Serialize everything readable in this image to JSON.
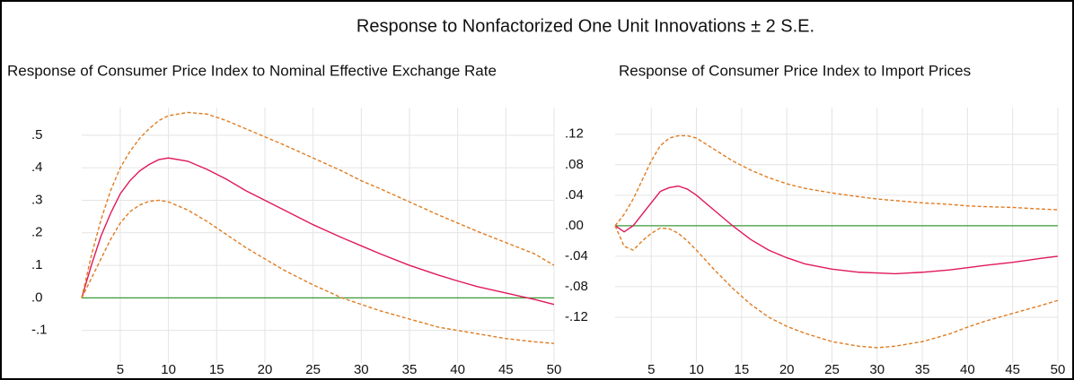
{
  "title": "Response to Nonfactorized One Unit Innovations ± 2 S.E.",
  "chart_data": [
    {
      "type": "line",
      "title": "Response of Consumer Price Index to Nominal Effective Exchange Rate",
      "x": [
        1,
        2,
        3,
        4,
        5,
        6,
        7,
        8,
        9,
        10,
        12,
        14,
        16,
        18,
        20,
        22,
        25,
        28,
        30,
        32,
        35,
        38,
        40,
        42,
        45,
        48,
        50
      ],
      "xlim": [
        1,
        50
      ],
      "xticks": [
        5,
        10,
        15,
        20,
        25,
        30,
        35,
        40,
        45,
        50
      ],
      "ylim": [
        -0.2,
        0.585
      ],
      "yticks": [
        {
          "value": -0.1,
          "label": "-.1"
        },
        {
          "value": 0,
          "label": ".0"
        },
        {
          "value": 0.1,
          "label": ".1"
        },
        {
          "value": 0.2,
          "label": ".2"
        },
        {
          "value": 0.3,
          "label": ".3"
        },
        {
          "value": 0.4,
          "label": ".4"
        },
        {
          "value": 0.5,
          "label": ".5"
        }
      ],
      "grid": true,
      "zero_line": {
        "value": 0,
        "color": "#3a9a3a"
      },
      "series": [
        {
          "color": "#e0185c",
          "dashed": false,
          "values": [
            0,
            0.1,
            0.19,
            0.26,
            0.32,
            0.36,
            0.39,
            0.41,
            0.425,
            0.43,
            0.42,
            0.395,
            0.365,
            0.33,
            0.3,
            0.27,
            0.225,
            0.185,
            0.16,
            0.135,
            0.1,
            0.07,
            0.052,
            0.035,
            0.015,
            -0.005,
            -0.02
          ]
        },
        {
          "color": "#e07b20",
          "dashed": true,
          "values": [
            0,
            0.13,
            0.24,
            0.33,
            0.4,
            0.45,
            0.49,
            0.52,
            0.545,
            0.56,
            0.57,
            0.565,
            0.545,
            0.52,
            0.495,
            0.47,
            0.43,
            0.39,
            0.36,
            0.335,
            0.295,
            0.255,
            0.23,
            0.205,
            0.17,
            0.135,
            0.1
          ]
        },
        {
          "color": "#e07b20",
          "dashed": true,
          "values": [
            0,
            0.06,
            0.12,
            0.18,
            0.23,
            0.265,
            0.285,
            0.297,
            0.3,
            0.295,
            0.27,
            0.235,
            0.195,
            0.155,
            0.12,
            0.085,
            0.04,
            0.0,
            -0.02,
            -0.04,
            -0.065,
            -0.09,
            -0.1,
            -0.11,
            -0.125,
            -0.135,
            -0.14
          ]
        }
      ]
    },
    {
      "type": "line",
      "title": "Response of Consumer Price Index to Import Prices",
      "x": [
        1,
        2,
        3,
        4,
        5,
        6,
        7,
        8,
        9,
        10,
        12,
        14,
        16,
        18,
        20,
        22,
        25,
        28,
        30,
        32,
        35,
        38,
        40,
        42,
        45,
        48,
        50
      ],
      "xlim": [
        1,
        50
      ],
      "xticks": [
        5,
        10,
        15,
        20,
        25,
        30,
        35,
        40,
        45,
        50
      ],
      "ylim": [
        -0.18,
        0.155
      ],
      "yticks": [
        {
          "value": -0.12,
          "label": "-.12"
        },
        {
          "value": -0.08,
          "label": "-.08"
        },
        {
          "value": -0.04,
          "label": "-.04"
        },
        {
          "value": 0,
          "label": ".00"
        },
        {
          "value": 0.04,
          "label": ".04"
        },
        {
          "value": 0.08,
          "label": ".08"
        },
        {
          "value": 0.12,
          "label": ".12"
        }
      ],
      "grid": true,
      "zero_line": {
        "value": 0,
        "color": "#3a9a3a"
      },
      "series": [
        {
          "color": "#e0185c",
          "dashed": false,
          "values": [
            0,
            -0.008,
            0,
            0.015,
            0.03,
            0.045,
            0.05,
            0.052,
            0.048,
            0.04,
            0.02,
            0.0,
            -0.018,
            -0.032,
            -0.042,
            -0.05,
            -0.057,
            -0.061,
            -0.062,
            -0.063,
            -0.061,
            -0.058,
            -0.055,
            -0.052,
            -0.048,
            -0.043,
            -0.04
          ]
        },
        {
          "color": "#e07b20",
          "dashed": true,
          "values": [
            0,
            0.015,
            0.035,
            0.06,
            0.085,
            0.105,
            0.115,
            0.118,
            0.118,
            0.115,
            0.1,
            0.085,
            0.073,
            0.063,
            0.055,
            0.049,
            0.043,
            0.038,
            0.035,
            0.033,
            0.03,
            0.028,
            0.026,
            0.025,
            0.024,
            0.022,
            0.021
          ]
        },
        {
          "color": "#e07b20",
          "dashed": true,
          "values": [
            0,
            -0.027,
            -0.032,
            -0.02,
            -0.01,
            -0.003,
            -0.004,
            -0.01,
            -0.02,
            -0.032,
            -0.058,
            -0.082,
            -0.103,
            -0.12,
            -0.132,
            -0.141,
            -0.152,
            -0.158,
            -0.16,
            -0.158,
            -0.152,
            -0.142,
            -0.133,
            -0.125,
            -0.115,
            -0.105,
            -0.098
          ]
        }
      ]
    }
  ]
}
